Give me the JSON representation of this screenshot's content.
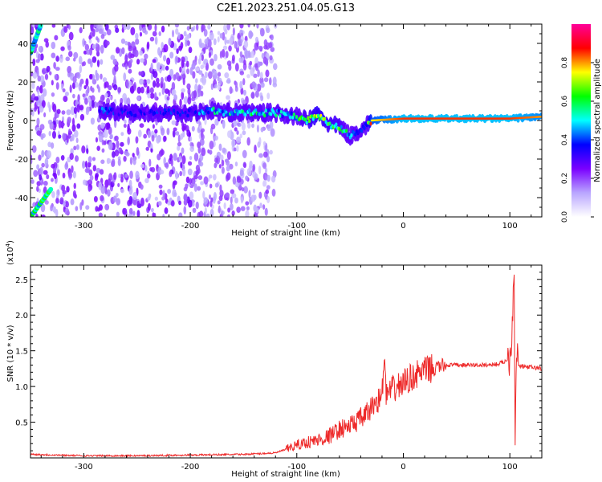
{
  "title": "C2E1.2023.251.04.05.G13",
  "chart_data": [
    {
      "type": "heatmap",
      "xlabel": "Height of straight line (km)",
      "ylabel": "Frequency (Hz)",
      "xlim": [
        -350,
        130
      ],
      "ylim": [
        -50,
        50
      ],
      "x_ticks": [
        -300,
        -200,
        -100,
        0,
        100
      ],
      "y_ticks": [
        -40,
        -20,
        0,
        20,
        40
      ],
      "colorbar": {
        "label": "Normalized spectral amplitude",
        "range": [
          0,
          1
        ],
        "ticks": [
          "0.0",
          "0.2",
          "0.4",
          "0.6",
          "0.8"
        ],
        "colors": [
          "#ffffff",
          "#b9a6ff",
          "#7a00ff",
          "#0000ff",
          "#00ffff",
          "#00ff00",
          "#ffff00",
          "#ff0000",
          "#ff0099"
        ]
      },
      "ridge": {
        "x": [
          -280,
          -260,
          -240,
          -220,
          -200,
          -180,
          -160,
          -140,
          -120,
          -110,
          -100,
          -90,
          -80,
          -70,
          -60,
          -50,
          -40,
          -35,
          -30,
          0,
          50,
          100,
          130
        ],
        "y": [
          5,
          4,
          4,
          4,
          4,
          5,
          4,
          4,
          4,
          3,
          2,
          0,
          3,
          -2,
          -3,
          -8,
          -5,
          -3,
          0,
          1,
          1,
          1,
          2
        ],
        "amplitude": [
          0.35,
          0.3,
          0.3,
          0.35,
          0.3,
          0.45,
          0.45,
          0.5,
          0.45,
          0.4,
          0.5,
          0.55,
          0.6,
          0.55,
          0.55,
          0.45,
          0.3,
          0.4,
          0.75,
          0.85,
          0.85,
          0.85,
          0.8
        ]
      },
      "edge_tracks": [
        {
          "x": [
            -350,
            -340
          ],
          "y": [
            35,
            50
          ],
          "amplitude": 0.5
        },
        {
          "x": [
            -350,
            -330
          ],
          "y": [
            -50,
            -35
          ],
          "amplitude": 0.55
        }
      ],
      "noise_region": {
        "x": [
          -350,
          -120
        ],
        "amplitude": 0.25
      }
    },
    {
      "type": "line",
      "xlabel": "Height of straight line (km)",
      "ylabel": "SNR (10 * v/v)",
      "y_multiplier": "(x10",
      "y_multiplier_exp": "4",
      "y_multiplier_close": ")",
      "xlim": [
        -350,
        130
      ],
      "ylim": [
        0,
        2.7
      ],
      "x_ticks": [
        -300,
        -200,
        -100,
        0,
        100
      ],
      "y_ticks": [
        0.5,
        1.0,
        1.5,
        2.0,
        2.5
      ],
      "y_tick_labels": [
        "0.5",
        "1.0",
        "1.5",
        "2.0",
        "2.5"
      ],
      "color": "#ee2a2a",
      "series": [
        {
          "x": [
            -350,
            -300,
            -250,
            -200,
            -150,
            -120,
            -110,
            -100,
            -90,
            -80,
            -70,
            -60,
            -50,
            -40,
            -35,
            -30,
            -25,
            -20,
            -18,
            -16,
            -15,
            -10,
            -5,
            0,
            5,
            10,
            20,
            30,
            40,
            50,
            60,
            70,
            80,
            90,
            95,
            100,
            102,
            104,
            105,
            106,
            108,
            110,
            120,
            130
          ],
          "y": [
            0.05,
            0.03,
            0.03,
            0.04,
            0.05,
            0.07,
            0.12,
            0.18,
            0.22,
            0.25,
            0.3,
            0.4,
            0.45,
            0.55,
            0.6,
            0.7,
            0.8,
            0.85,
            1.45,
            0.85,
            0.9,
            0.95,
            1.0,
            1.05,
            1.1,
            1.15,
            1.22,
            1.27,
            1.3,
            1.3,
            1.3,
            1.3,
            1.3,
            1.32,
            1.35,
            1.4,
            1.8,
            2.7,
            0.15,
            1.6,
            1.3,
            1.28,
            1.27,
            1.25
          ]
        }
      ]
    }
  ]
}
